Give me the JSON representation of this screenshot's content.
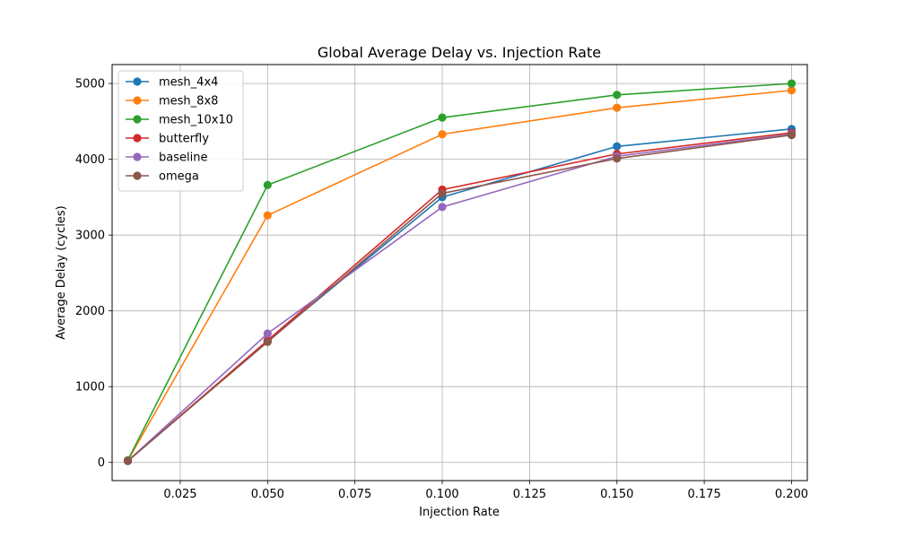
{
  "chart_data": {
    "type": "line",
    "title": "Global Average Delay vs. Injection Rate",
    "xlabel": "Injection Rate",
    "ylabel": "Average Delay (cycles)",
    "xlim": [
      0.0055,
      0.2045
    ],
    "ylim": [
      -240,
      5250
    ],
    "xticks": [
      0.025,
      0.05,
      0.075,
      0.1,
      0.125,
      0.15,
      0.175,
      0.2
    ],
    "xtick_labels": [
      "0.025",
      "0.050",
      "0.075",
      "0.100",
      "0.125",
      "0.150",
      "0.175",
      "0.200"
    ],
    "yticks": [
      0,
      1000,
      2000,
      3000,
      4000,
      5000
    ],
    "ytick_labels": [
      "0",
      "1000",
      "2000",
      "3000",
      "4000",
      "5000"
    ],
    "grid": true,
    "legend_position": "top-left",
    "x": [
      0.01,
      0.05,
      0.1,
      0.15,
      0.2
    ],
    "series": [
      {
        "name": "mesh_4x4",
        "color": "#1f77b4",
        "values": [
          20,
          1600,
          3500,
          4170,
          4400
        ]
      },
      {
        "name": "mesh_8x8",
        "color": "#ff7f0e",
        "values": [
          25,
          3260,
          4330,
          4680,
          4910
        ]
      },
      {
        "name": "mesh_10x10",
        "color": "#2ca02c",
        "values": [
          30,
          3660,
          4550,
          4850,
          5000
        ]
      },
      {
        "name": "butterfly",
        "color": "#d62728",
        "values": [
          20,
          1610,
          3600,
          4070,
          4350
        ]
      },
      {
        "name": "baseline",
        "color": "#9467bd",
        "values": [
          20,
          1700,
          3370,
          4040,
          4330
        ]
      },
      {
        "name": "omega",
        "color": "#8c564b",
        "values": [
          20,
          1590,
          3550,
          4010,
          4320
        ]
      }
    ]
  }
}
